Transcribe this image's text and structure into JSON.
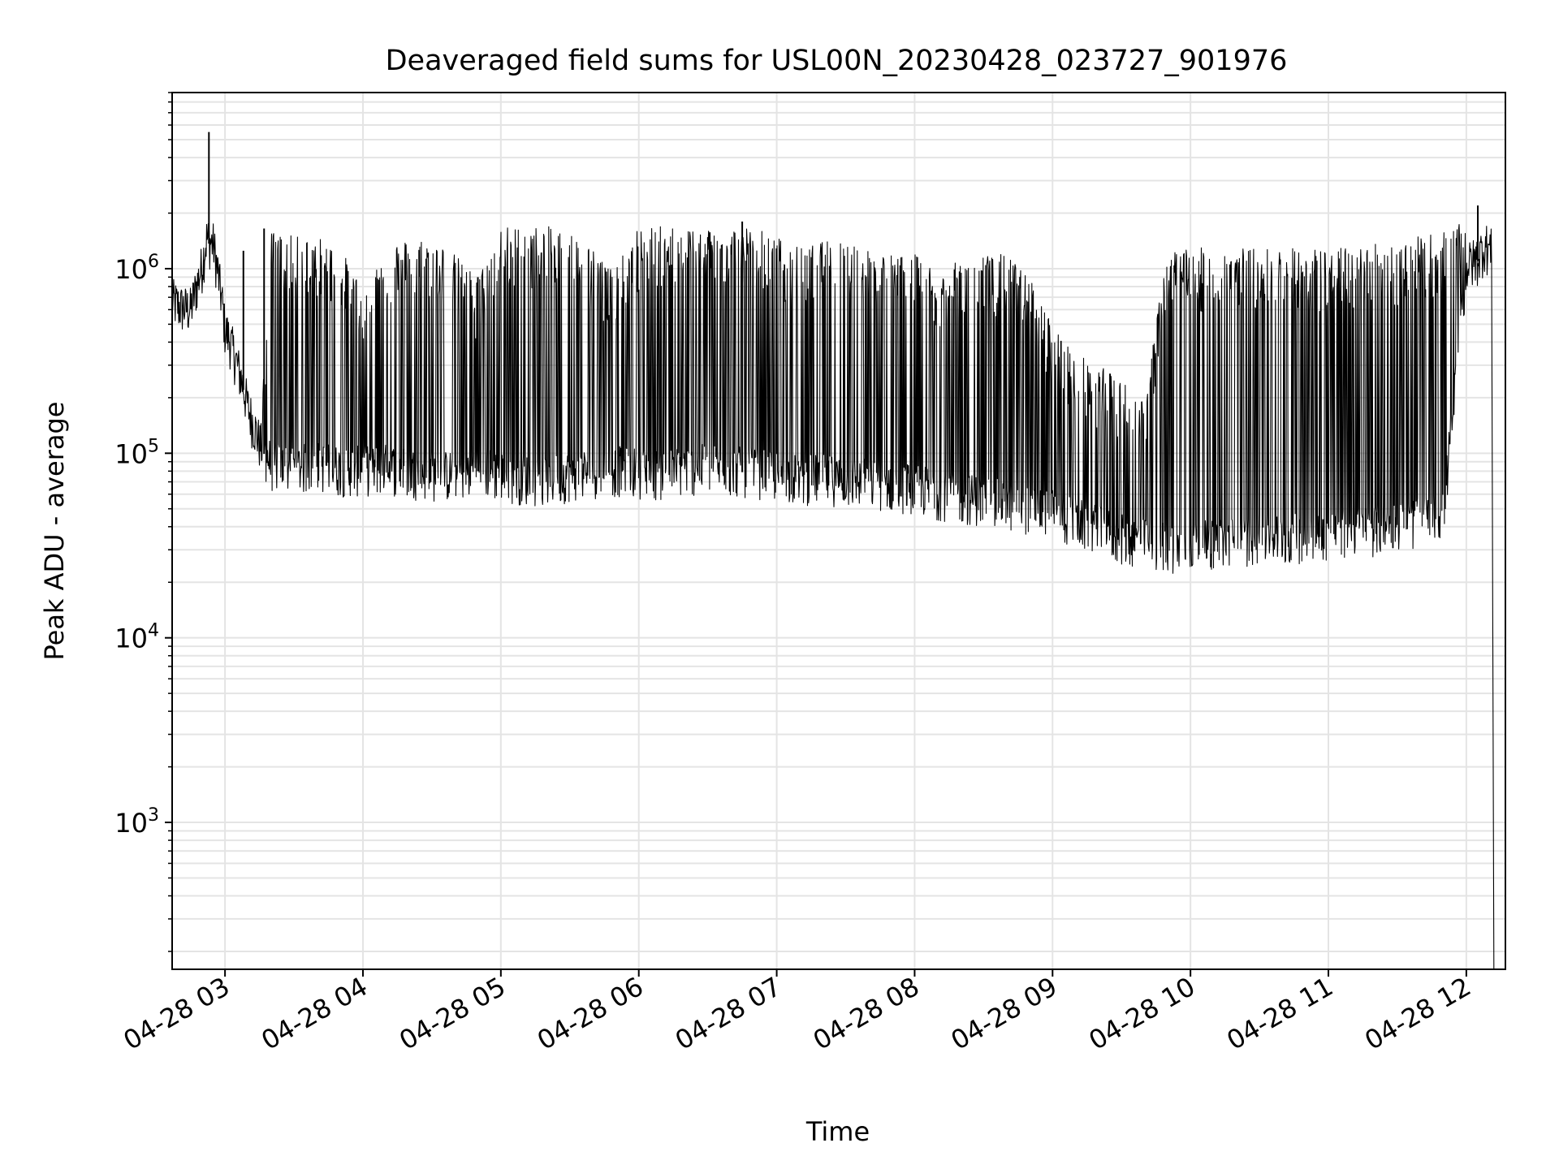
{
  "chart_data": {
    "type": "line",
    "title": "Deaveraged field sums for USL00N_20230428_023727_901976",
    "xlabel": "Time",
    "ylabel": "Peak ADU - average",
    "yscale": "log",
    "grid": "on (major and minor)",
    "x_ticks": [
      "04-28 03",
      "04-28 04",
      "04-28 05",
      "04-28 06",
      "04-28 07",
      "04-28 08",
      "04-28 09",
      "04-28 10",
      "04-28 11",
      "04-28 12"
    ],
    "y_ticks": [
      {
        "base": "10",
        "exp": "3",
        "value": 1000
      },
      {
        "base": "10",
        "exp": "4",
        "value": 10000
      },
      {
        "base": "10",
        "exp": "5",
        "value": 100000
      },
      {
        "base": "10",
        "exp": "6",
        "value": 1000000
      }
    ],
    "xlim": [
      "2023-04-28 02:37",
      "2023-04-28 12:17"
    ],
    "ylim": [
      160,
      9000000
    ],
    "colors": {
      "line": "#000000",
      "grid": "#e4e4e4"
    },
    "series": [
      {
        "x": [
          "02:37",
          "02:40",
          "02:45",
          "02:50",
          "02:52",
          "02:55",
          "02:57",
          "02:59",
          "03:00",
          "03:02",
          "03:05",
          "03:08",
          "03:10",
          "03:15",
          "03:20",
          "03:30",
          "03:40",
          "03:50",
          "04:00",
          "04:10",
          "04:20",
          "04:30",
          "04:40",
          "04:50",
          "05:00",
          "05:10",
          "05:20",
          "05:30",
          "05:40",
          "05:50",
          "06:00",
          "06:10",
          "06:20",
          "06:30",
          "06:40",
          "06:50",
          "07:00",
          "07:10",
          "07:20",
          "07:30",
          "07:40",
          "07:50",
          "08:00",
          "08:10",
          "08:20",
          "08:30",
          "08:40",
          "08:50",
          "09:00",
          "09:10",
          "09:20",
          "09:30",
          "09:40",
          "09:50",
          "10:00",
          "10:10",
          "10:20",
          "10:30",
          "10:40",
          "10:50",
          "11:00",
          "11:10",
          "11:20",
          "11:30",
          "11:40",
          "11:50",
          "12:00",
          "12:05",
          "12:08",
          "12:11",
          "12:12"
        ],
        "base": [
          650000,
          600000,
          580000,
          1000000,
          1400000,
          1300000,
          900000,
          600000,
          450000,
          400000,
          300000,
          220000,
          170000,
          110000,
          85000,
          80000,
          85000,
          80000,
          80000,
          82000,
          78000,
          75000,
          75000,
          80000,
          75000,
          72000,
          70000,
          75000,
          78000,
          80000,
          78000,
          76000,
          80000,
          82000,
          80000,
          78000,
          75000,
          72000,
          72000,
          70000,
          68000,
          66000,
          64000,
          60000,
          57000,
          55000,
          52000,
          50000,
          46000,
          42000,
          38000,
          34000,
          32000,
          31000,
          31000,
          32000,
          33000,
          34000,
          34000,
          35000,
          36000,
          37000,
          38000,
          40000,
          42000,
          45000,
          1000000,
          1100000,
          1300000,
          1200000,
          190
        ],
        "high": [
          650000,
          600000,
          580000,
          1000000,
          1400000,
          1300000,
          900000,
          600000,
          450000,
          400000,
          300000,
          220000,
          170000,
          110000,
          1600000,
          1500000,
          1500000,
          1300000,
          800000,
          1400000,
          1450000,
          1500000,
          1200000,
          900000,
          1700000,
          1700000,
          1700000,
          1600000,
          1300000,
          1000000,
          1700000,
          1700000,
          1700000,
          1700000,
          1700000,
          1700000,
          1500000,
          1300000,
          1400000,
          1500000,
          1300000,
          1200000,
          1200000,
          1000000,
          1100000,
          1200000,
          1200000,
          900000,
          500000,
          350000,
          300000,
          250000,
          200000,
          1300000,
          1300000,
          1300000,
          1300000,
          1300000,
          1300000,
          1300000,
          1300000,
          1300000,
          1400000,
          1400000,
          1500000,
          1600000,
          1800000,
          1900000,
          2000000,
          1700000,
          190
        ]
      }
    ],
    "spikes": [
      {
        "x": "02:53",
        "y": 5500000
      },
      {
        "x": "03:08",
        "y": 1250000
      },
      {
        "x": "03:17",
        "y": 1650000
      },
      {
        "x": "04:50",
        "y": 900000
      },
      {
        "x": "06:45",
        "y": 1800000
      },
      {
        "x": "09:25",
        "y": 270000
      },
      {
        "x": "12:05",
        "y": 2200000
      }
    ]
  }
}
